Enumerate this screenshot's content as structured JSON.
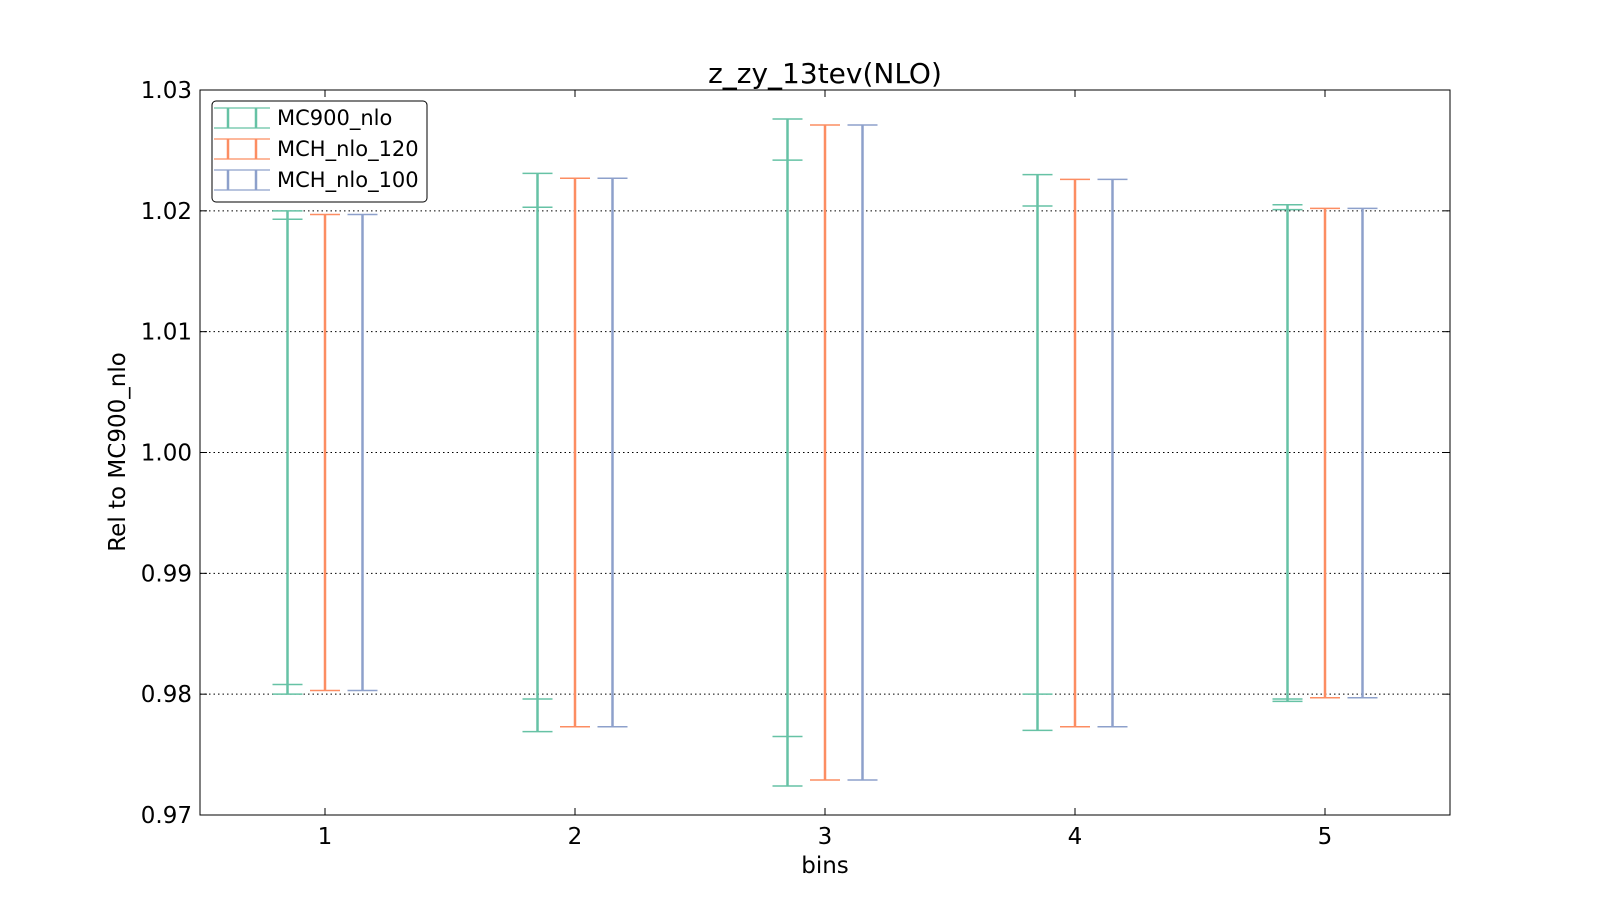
{
  "chart_data": {
    "type": "errorbar",
    "title": "z_zy_13tev(NLO)",
    "xlabel": "bins",
    "ylabel": "Rel to MC900_nlo",
    "xlim": [
      0.5,
      5.5
    ],
    "ylim": [
      0.97,
      1.03
    ],
    "x_ticks": [
      "1",
      "2",
      "3",
      "4",
      "5"
    ],
    "y_ticks": [
      "0.97",
      "0.98",
      "0.99",
      "1.00",
      "1.01",
      "1.02",
      "1.03"
    ],
    "grid": "horizontal dotted",
    "legend_position": "top-left",
    "series": [
      {
        "name": "MC900_nlo",
        "color": "#66c2a5",
        "offset": -0.15,
        "bins": [
          {
            "x": 1,
            "lower": 0.98,
            "upper": 1.02,
            "inner_lower": 0.9808,
            "inner_upper": 1.0193
          },
          {
            "x": 2,
            "lower": 0.9769,
            "upper": 1.0231,
            "inner_lower": 0.9796,
            "inner_upper": 1.0203
          },
          {
            "x": 3,
            "lower": 0.9724,
            "upper": 1.0276,
            "inner_lower": 0.9765,
            "inner_upper": 1.0242
          },
          {
            "x": 4,
            "lower": 0.977,
            "upper": 1.023,
            "inner_lower": 0.98,
            "inner_upper": 1.0204
          },
          {
            "x": 5,
            "lower": 0.9794,
            "upper": 1.0205,
            "inner_lower": 0.9796,
            "inner_upper": 1.0201
          }
        ]
      },
      {
        "name": "MCH_nlo_120",
        "color": "#fc8d62",
        "offset": 0.0,
        "bins": [
          {
            "x": 1,
            "lower": 0.9803,
            "upper": 1.0197
          },
          {
            "x": 2,
            "lower": 0.9773,
            "upper": 1.0227
          },
          {
            "x": 3,
            "lower": 0.9729,
            "upper": 1.0271
          },
          {
            "x": 4,
            "lower": 0.9773,
            "upper": 1.0226
          },
          {
            "x": 5,
            "lower": 0.9797,
            "upper": 1.0202
          }
        ]
      },
      {
        "name": "MCH_nlo_100",
        "color": "#8da0cb",
        "offset": 0.15,
        "bins": [
          {
            "x": 1,
            "lower": 0.9803,
            "upper": 1.0197
          },
          {
            "x": 2,
            "lower": 0.9773,
            "upper": 1.0227
          },
          {
            "x": 3,
            "lower": 0.9729,
            "upper": 1.0271
          },
          {
            "x": 4,
            "lower": 0.9773,
            "upper": 1.0226
          },
          {
            "x": 5,
            "lower": 0.9797,
            "upper": 1.0202
          }
        ]
      }
    ]
  }
}
